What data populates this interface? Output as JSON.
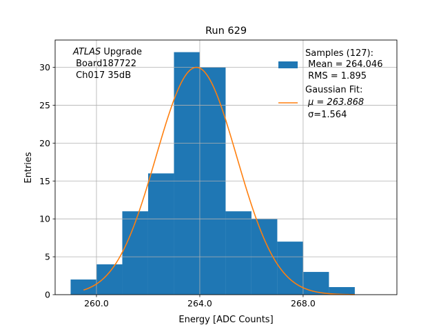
{
  "chart_data": {
    "type": "bar",
    "title": "Run 629",
    "xlabel": "Energy [ADC Counts]",
    "ylabel": "Entries",
    "xlim": [
      258.4,
      271.63
    ],
    "ylim": [
      0,
      33.6
    ],
    "grid": true,
    "bin_edges": [
      259,
      260,
      261,
      262,
      263,
      264,
      265,
      266,
      267,
      268,
      269,
      270
    ],
    "values": [
      2,
      4,
      11,
      16,
      32,
      30,
      11,
      10,
      7,
      3,
      1
    ],
    "xticks": [
      260,
      264,
      268
    ],
    "xtick_labels": [
      "260.0",
      "264.0",
      "268.0"
    ],
    "yticks": [
      0,
      5,
      10,
      15,
      20,
      25,
      30
    ],
    "ytick_labels": [
      "0",
      "5",
      "10",
      "15",
      "20",
      "25",
      "30"
    ],
    "fit": {
      "type": "gaussian",
      "mu": 263.868,
      "sigma": 1.564,
      "amplitude": 30,
      "x_range": [
        259.5,
        270
      ]
    },
    "bar_color": "#1f77b4",
    "fit_color": "#ff7f0e",
    "annotation": {
      "italic": "ATLAS",
      "rest": " Upgrade",
      "line2": " Board187722",
      "line3": " Ch017 35dB"
    },
    "legend": {
      "placement": "top-right",
      "hist_lines": [
        "Samples (127):",
        " Mean = 264.046",
        " RMS = 1.895"
      ],
      "fit_lines": [
        "Gaussian Fit:",
        "μ = 263.868",
        "σ=1.564"
      ]
    }
  }
}
